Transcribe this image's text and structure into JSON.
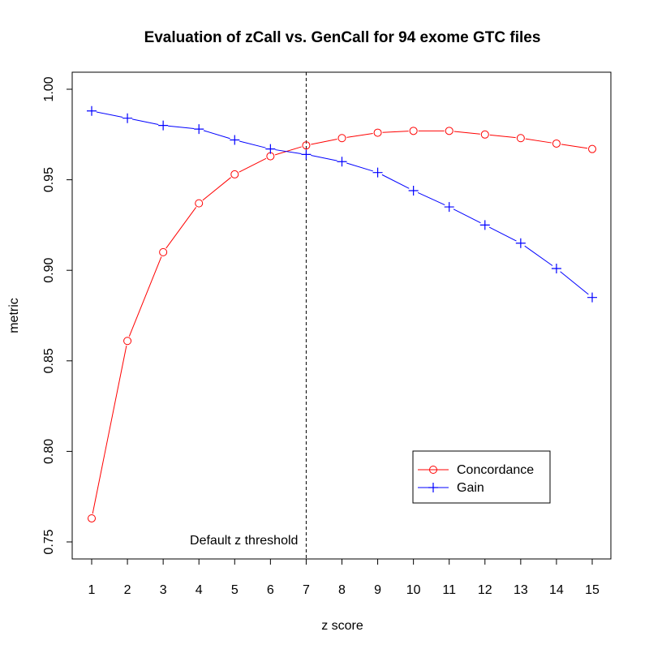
{
  "chart_data": {
    "type": "line",
    "title": "Evaluation of zCall vs. GenCall for 94 exome GTC files",
    "xlabel": "z score",
    "ylabel": "metric",
    "x": [
      1,
      2,
      3,
      4,
      5,
      6,
      7,
      8,
      9,
      10,
      11,
      12,
      13,
      14,
      15
    ],
    "xlim": [
      1,
      15
    ],
    "ylim": [
      0.75,
      1.0
    ],
    "x_ticks": [
      "1",
      "2",
      "3",
      "4",
      "5",
      "6",
      "7",
      "8",
      "9",
      "10",
      "11",
      "12",
      "13",
      "14",
      "15"
    ],
    "y_ticks": [
      "0.75",
      "0.80",
      "0.85",
      "0.90",
      "0.95",
      "1.00"
    ],
    "grid": false,
    "legend_position": "bottom-right",
    "series": [
      {
        "name": "Concordance",
        "color": "#ff0000",
        "marker": "circle",
        "values": [
          0.763,
          0.861,
          0.91,
          0.937,
          0.953,
          0.963,
          0.969,
          0.973,
          0.976,
          0.977,
          0.977,
          0.975,
          0.973,
          0.97,
          0.967
        ]
      },
      {
        "name": "Gain",
        "color": "#0000ff",
        "marker": "plus",
        "values": [
          0.988,
          0.984,
          0.98,
          0.978,
          0.972,
          0.967,
          0.964,
          0.96,
          0.954,
          0.944,
          0.935,
          0.925,
          0.915,
          0.901,
          0.885
        ]
      }
    ],
    "reference_line": {
      "x": 7,
      "style": "dashed",
      "label": "Default z threshold"
    }
  }
}
